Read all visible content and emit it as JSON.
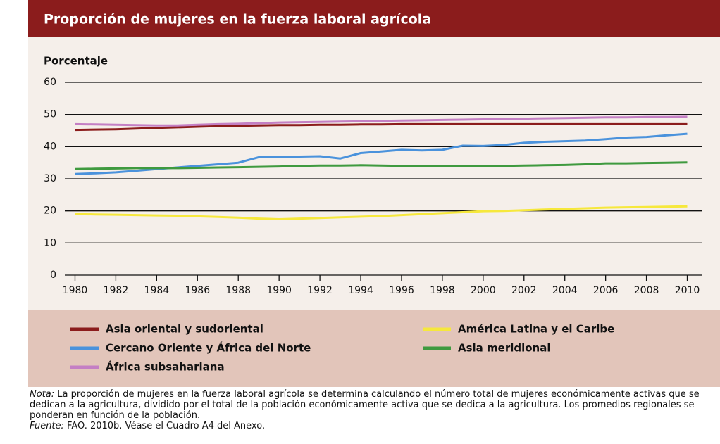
{
  "chart_data": {
    "type": "line",
    "title": "Proporción de mujeres en la fuerza laboral agrícola",
    "ylabel": "Porcentaje",
    "x": [
      1980,
      1981,
      1982,
      1983,
      1984,
      1985,
      1986,
      1987,
      1988,
      1989,
      1990,
      1991,
      1992,
      1993,
      1994,
      1995,
      1996,
      1997,
      1998,
      1999,
      2000,
      2001,
      2002,
      2003,
      2004,
      2005,
      2006,
      2007,
      2008,
      2009,
      2010
    ],
    "series": [
      {
        "name": "Asia oriental y sudoriental",
        "color": "#8b1c1c",
        "values": [
          45.2,
          45.3,
          45.4,
          45.6,
          45.8,
          46,
          46.2,
          46.4,
          46.5,
          46.6,
          46.7,
          46.7,
          46.8,
          46.8,
          46.9,
          46.9,
          47,
          47,
          47,
          47,
          47,
          47,
          47,
          47,
          47,
          47,
          47,
          47,
          47,
          47,
          47
        ]
      },
      {
        "name": "América Latina y el Caribe",
        "color": "#f6e83c",
        "values": [
          19,
          18.9,
          18.8,
          18.7,
          18.6,
          18.5,
          18.3,
          18.1,
          17.9,
          17.6,
          17.4,
          17.6,
          17.8,
          18,
          18.2,
          18.4,
          18.7,
          19,
          19.3,
          19.6,
          19.9,
          20,
          20.2,
          20.4,
          20.6,
          20.8,
          21,
          21.1,
          21.2,
          21.3,
          21.4
        ]
      },
      {
        "name": "Cercano Oriente y África del Norte",
        "color": "#4a92dc",
        "values": [
          31.5,
          31.7,
          32,
          32.5,
          33,
          33.5,
          34,
          34.5,
          35,
          36.7,
          36.7,
          36.9,
          37,
          36.3,
          38,
          38.5,
          39,
          38.8,
          39,
          40.3,
          40.2,
          40.5,
          41.2,
          41.5,
          41.7,
          41.9,
          42.3,
          42.8,
          43,
          43.5,
          44
        ]
      },
      {
        "name": "Asia meridional",
        "color": "#3f9a3f",
        "values": [
          33,
          33.1,
          33.2,
          33.3,
          33.3,
          33.3,
          33.4,
          33.5,
          33.6,
          33.7,
          33.8,
          34,
          34.1,
          34.1,
          34.2,
          34.1,
          34,
          34,
          34,
          34,
          34,
          34,
          34.1,
          34.2,
          34.3,
          34.5,
          34.8,
          34.8,
          34.9,
          35,
          35.1
        ]
      },
      {
        "name": "África subsahariana",
        "color": "#c47fc4",
        "values": [
          47,
          46.9,
          46.8,
          46.7,
          46.6,
          46.6,
          46.8,
          47,
          47.1,
          47.3,
          47.5,
          47.6,
          47.7,
          47.8,
          47.9,
          48,
          48.1,
          48.2,
          48.3,
          48.4,
          48.5,
          48.6,
          48.7,
          48.8,
          48.9,
          49,
          49.1,
          49.1,
          49.2,
          49.2,
          49.3
        ]
      }
    ],
    "xlim": [
      1979.5,
      2010.5
    ],
    "xticks": [
      1980,
      1982,
      1984,
      1986,
      1988,
      1990,
      1992,
      1994,
      1996,
      1998,
      2000,
      2002,
      2004,
      2006,
      2008,
      2010
    ],
    "ylim": [
      0,
      60
    ],
    "yticks": [
      0,
      10,
      20,
      30,
      40,
      50,
      60
    ],
    "grid": true,
    "note_label": "Nota:",
    "note": "La proporción de mujeres en la fuerza laboral agrícola se determina calculando el número total de mujeres económicamente activas que se dedican a la agricultura, dividido por el total de la población económicamente activa que se dedica a la agricultura. Los promedios regionales se ponderan en función de la población.",
    "source_label": "Fuente:",
    "source": "FAO. 2010b. Véase el Cuadro A4 del Anexo."
  }
}
